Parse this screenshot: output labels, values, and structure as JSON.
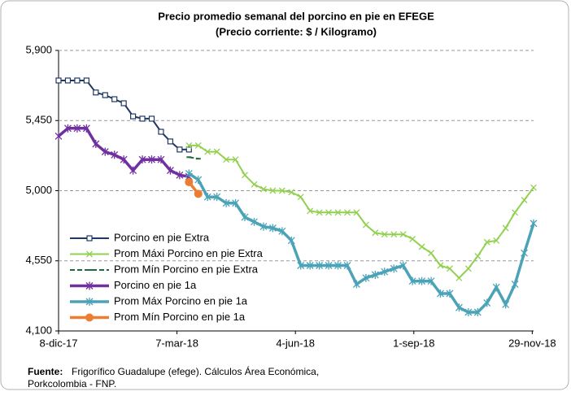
{
  "chart_data": {
    "type": "line",
    "title": "Precio promedio semanal del porcino en pie en EFEGE",
    "subtitle": "(Precio corriente: $ / Kilogramo)",
    "x": [
      "2017-12-08",
      "2017-12-15",
      "2017-12-22",
      "2017-12-29",
      "2018-01-05",
      "2018-01-12",
      "2018-01-19",
      "2018-01-26",
      "2018-02-02",
      "2018-02-09",
      "2018-02-16",
      "2018-02-23",
      "2018-03-02",
      "2018-03-09",
      "2018-03-16",
      "2018-03-23",
      "2018-03-30",
      "2018-04-06",
      "2018-04-13",
      "2018-04-20",
      "2018-04-27",
      "2018-05-04",
      "2018-05-11",
      "2018-05-18",
      "2018-05-25",
      "2018-06-01",
      "2018-06-08",
      "2018-06-15",
      "2018-06-22",
      "2018-06-29",
      "2018-07-06",
      "2018-07-13",
      "2018-07-20",
      "2018-07-27",
      "2018-08-03",
      "2018-08-10",
      "2018-08-17",
      "2018-08-24",
      "2018-08-31",
      "2018-09-07",
      "2018-09-14",
      "2018-09-21",
      "2018-09-28",
      "2018-10-05",
      "2018-10-12",
      "2018-10-19",
      "2018-10-26",
      "2018-11-02",
      "2018-11-09",
      "2018-11-16",
      "2018-11-23",
      "2018-11-30"
    ],
    "series": [
      {
        "name": "Porcino en pie Extra",
        "color": "#1f3864",
        "marker": "square",
        "values": [
          5707,
          5707,
          5707,
          5707,
          5630,
          5613,
          5587,
          5561,
          5477,
          5462,
          5462,
          5378,
          5316,
          5264,
          5264,
          null,
          null,
          null,
          null,
          null,
          null,
          null,
          null,
          null,
          null,
          null,
          null,
          null,
          null,
          null,
          null,
          null,
          null,
          null,
          null,
          null,
          null,
          null,
          null,
          null,
          null,
          null,
          null,
          null,
          null,
          null,
          null,
          null,
          null,
          null,
          null,
          null
        ]
      },
      {
        "name": "Prom Máxi Porcino en pie Extra",
        "color": "#92d050",
        "marker": "x",
        "values": [
          null,
          null,
          null,
          null,
          null,
          null,
          null,
          null,
          null,
          null,
          null,
          null,
          null,
          null,
          5290,
          5290,
          5250,
          5250,
          5200,
          5200,
          5100,
          5040,
          5010,
          5000,
          5000,
          4990,
          4960,
          4870,
          4860,
          4860,
          4860,
          4860,
          4860,
          4780,
          4730,
          4720,
          4720,
          4720,
          4690,
          4640,
          4600,
          4520,
          4500,
          4440,
          4500,
          4580,
          4670,
          4680,
          4760,
          4860,
          4940,
          5020
        ]
      },
      {
        "name": "Prom Mín Porcino en pie Extra",
        "color": "#1e6b3a",
        "marker": "dash",
        "values": [
          null,
          null,
          null,
          null,
          null,
          null,
          null,
          null,
          null,
          null,
          null,
          null,
          null,
          null,
          5215,
          5205,
          null,
          null,
          null,
          null,
          null,
          null,
          null,
          null,
          null,
          null,
          null,
          null,
          null,
          null,
          null,
          null,
          null,
          null,
          null,
          null,
          null,
          null,
          null,
          null,
          null,
          null,
          null,
          null,
          null,
          null,
          null,
          null,
          null,
          null,
          null,
          null
        ]
      },
      {
        "name": "Porcino en pie 1a",
        "color": "#7030a0",
        "marker": "star",
        "values": [
          5350,
          5400,
          5400,
          5400,
          5300,
          5250,
          5230,
          5200,
          5130,
          5200,
          5200,
          5200,
          5130,
          5100,
          5090,
          null,
          null,
          null,
          null,
          null,
          null,
          null,
          null,
          null,
          null,
          null,
          null,
          null,
          null,
          null,
          null,
          null,
          null,
          null,
          null,
          null,
          null,
          null,
          null,
          null,
          null,
          null,
          null,
          null,
          null,
          null,
          null,
          null,
          null,
          null,
          null,
          null
        ]
      },
      {
        "name": "Prom Máx Porcino en pie 1a",
        "color": "#4ba3b8",
        "marker": "star",
        "values": [
          null,
          null,
          null,
          null,
          null,
          null,
          null,
          null,
          null,
          null,
          null,
          null,
          null,
          null,
          5110,
          5070,
          4960,
          4960,
          4920,
          4920,
          4830,
          4800,
          4770,
          4760,
          4740,
          4680,
          4520,
          4520,
          4520,
          4520,
          4520,
          4520,
          4400,
          4440,
          4460,
          4480,
          4500,
          4520,
          4420,
          4420,
          4420,
          4340,
          4340,
          4250,
          4220,
          4220,
          4280,
          4380,
          4270,
          4400,
          4600,
          4790
        ]
      },
      {
        "name": "Prom Mín Porcino en pie 1a",
        "color": "#ed7d31",
        "marker": "circle",
        "values": [
          null,
          null,
          null,
          null,
          null,
          null,
          null,
          null,
          null,
          null,
          null,
          null,
          null,
          null,
          5055,
          4980,
          null,
          null,
          null,
          null,
          null,
          null,
          null,
          null,
          null,
          null,
          null,
          null,
          null,
          null,
          null,
          null,
          null,
          null,
          null,
          null,
          null,
          null,
          null,
          null,
          null,
          null,
          null,
          null,
          null,
          null,
          null,
          null,
          null,
          null,
          null,
          null
        ]
      }
    ],
    "xlim": [
      "2017-12-08",
      "2018-11-30"
    ],
    "xticks": [
      {
        "value": "2017-12-08",
        "label": "8-dic-17"
      },
      {
        "value": "2018-03-07",
        "label": "7-mar-18"
      },
      {
        "value": "2018-06-04",
        "label": "4-jun-18"
      },
      {
        "value": "2018-09-01",
        "label": "1-sep-18"
      },
      {
        "value": "2018-11-29",
        "label": "29-nov-18"
      }
    ],
    "ylim": [
      4100,
      5900
    ],
    "yticks": [
      {
        "value": 4100,
        "label": "4,100"
      },
      {
        "value": 4550,
        "label": "4,550"
      },
      {
        "value": 5000,
        "label": "5,000"
      },
      {
        "value": 5450,
        "label": "5,450"
      },
      {
        "value": 5900,
        "label": "5,900"
      }
    ],
    "grid": true,
    "legend": "lower-left",
    "source_label": "Fuente:",
    "source": "Frigorífico Guadalupe (efege). Cálculos Área Económica,",
    "source_line2": "Porkcolombia - FNP."
  }
}
